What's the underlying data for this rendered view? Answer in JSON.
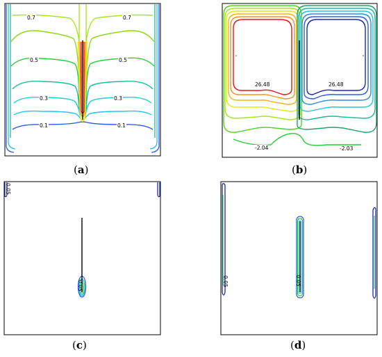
{
  "panels": [
    {
      "id": "a",
      "letter": "a",
      "contour_labels": [
        "0.7",
        "0.7",
        "0.5",
        "0.5",
        "0.3",
        "0.3",
        "0.1",
        "0.1"
      ]
    },
    {
      "id": "b",
      "letter": "b",
      "contour_labels": [
        "26.48",
        "26.48",
        "-2.04",
        "-2.03"
      ]
    },
    {
      "id": "c",
      "letter": "c",
      "contour_labels": [
        "0.05",
        "0.05"
      ]
    },
    {
      "id": "d",
      "letter": "d",
      "contour_labels": [
        "0.05",
        "0.05"
      ]
    }
  ],
  "colors": {
    "red": "#e8141b",
    "orange": "#f7941d",
    "yellow": "#e6e619",
    "lime": "#a8e61d",
    "green": "#2ecc40",
    "teal": "#1abc9c",
    "cyan": "#25c4e6",
    "blue": "#2f5ce6",
    "navy": "#1a2aa8"
  }
}
